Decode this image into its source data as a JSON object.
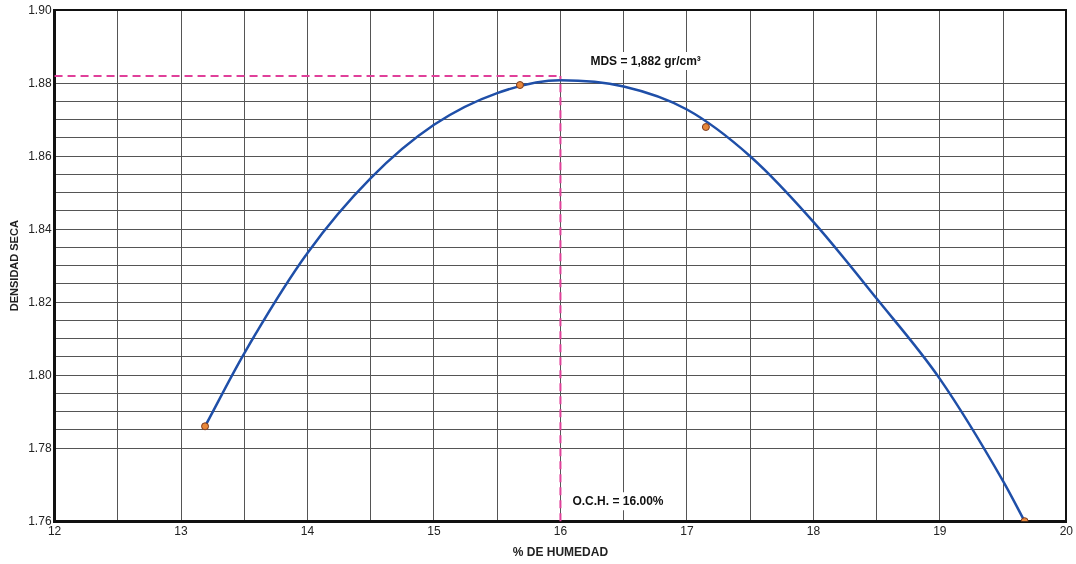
{
  "chart_data": {
    "type": "scatter",
    "xlabel": "% DE HUMEDAD",
    "ylabel": "DENSIDAD SECA",
    "xlim": [
      12,
      20
    ],
    "ylim": [
      1.76,
      1.9
    ],
    "xticks": [
      12,
      {
        "value": 12.5,
        "label": null
      },
      13,
      {
        "value": 13.5,
        "label": null
      },
      14,
      {
        "value": 14.5,
        "label": null
      },
      15,
      {
        "value": 15.5,
        "label": null
      },
      16,
      {
        "value": 16.5,
        "label": null
      },
      17,
      {
        "value": 17.5,
        "label": null
      },
      18,
      {
        "value": 18.5,
        "label": null
      },
      19,
      {
        "value": 19.5,
        "label": null
      },
      20
    ],
    "yticks": [
      {
        "value": 1.76,
        "label": "1.76"
      },
      {
        "value": 1.78,
        "label": "1.78"
      },
      {
        "value": 1.785,
        "label": null
      },
      {
        "value": 1.79,
        "label": null
      },
      {
        "value": 1.795,
        "label": null
      },
      {
        "value": 1.8,
        "label": "1.80"
      },
      {
        "value": 1.805,
        "label": null
      },
      {
        "value": 1.81,
        "label": null
      },
      {
        "value": 1.815,
        "label": null
      },
      {
        "value": 1.82,
        "label": "1.82"
      },
      {
        "value": 1.825,
        "label": null
      },
      {
        "value": 1.83,
        "label": null
      },
      {
        "value": 1.835,
        "label": null
      },
      {
        "value": 1.84,
        "label": "1.84"
      },
      {
        "value": 1.845,
        "label": null
      },
      {
        "value": 1.85,
        "label": null
      },
      {
        "value": 1.855,
        "label": null
      },
      {
        "value": 1.86,
        "label": "1.86"
      },
      {
        "value": 1.865,
        "label": null
      },
      {
        "value": 1.87,
        "label": null
      },
      {
        "value": 1.875,
        "label": null
      },
      {
        "value": 1.88,
        "label": "1.88"
      },
      {
        "value": 1.9,
        "label": "1.90"
      }
    ],
    "grid": true,
    "legend": false,
    "series": [
      {
        "type": "scatter",
        "color": "#e8873a",
        "marker": "circle",
        "x": [
          13.19,
          15.68,
          17.15,
          19.67
        ],
        "values": [
          1.786,
          1.8795,
          1.868,
          1.76
        ]
      },
      {
        "type": "line",
        "color": "#1f4fa8",
        "marker": "none",
        "line_style": "solid",
        "x": [
          13.19,
          13.5,
          14,
          14.5,
          15,
          15.5,
          16,
          16.5,
          17,
          17.5,
          18,
          18.5,
          19,
          19.5,
          19.67
        ],
        "values": [
          1.786,
          1.806,
          1.8335,
          1.854,
          1.8686,
          1.8773,
          1.8808,
          1.8791,
          1.8728,
          1.86,
          1.842,
          1.821,
          1.799,
          1.771,
          1.76
        ]
      }
    ],
    "ref_lines": [
      {
        "axis": "y",
        "value": 1.882,
        "label": "MDS = 1,882 gr/cm³",
        "color": "#e0409a",
        "line_style": "dashed"
      },
      {
        "axis": "x",
        "value": 16,
        "label": "O.C.H. = 16.00%",
        "color": "#e0409a",
        "line_style": "dashed"
      }
    ]
  }
}
